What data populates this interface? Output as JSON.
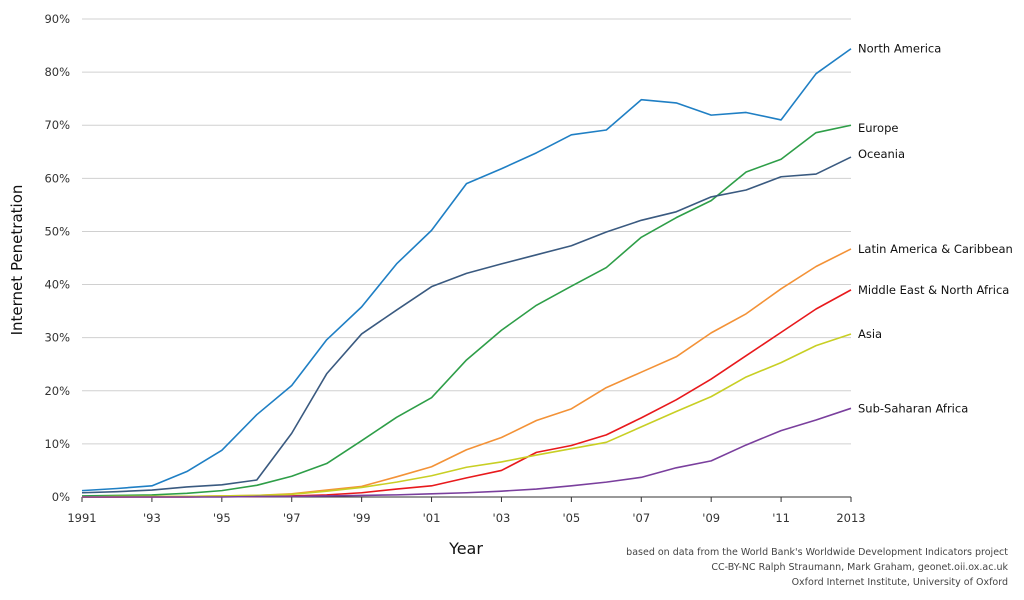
{
  "chart_data": {
    "type": "line",
    "xlabel": "Year",
    "ylabel": "Internet Penetration",
    "x": [
      1991,
      1992,
      1993,
      1994,
      1995,
      1996,
      1997,
      1998,
      1999,
      2000,
      2001,
      2002,
      2003,
      2004,
      2005,
      2006,
      2007,
      2008,
      2009,
      2010,
      2011,
      2012,
      2013
    ],
    "x_tick_labels": [
      "1991",
      "'93",
      "'95",
      "'97",
      "'99",
      "'01",
      "'03",
      "'05",
      "'07",
      "'09",
      "'11",
      "2013"
    ],
    "x_tick_values": [
      1991,
      1993,
      1995,
      1997,
      1999,
      2001,
      2003,
      2005,
      2007,
      2009,
      2011,
      2013
    ],
    "y_tick_labels": [
      "0%",
      "10%",
      "20%",
      "30%",
      "40%",
      "50%",
      "60%",
      "70%",
      "80%",
      "90%"
    ],
    "y_tick_values": [
      0,
      10,
      20,
      30,
      40,
      50,
      60,
      70,
      80,
      90
    ],
    "ylim": [
      0,
      90
    ],
    "xlim": [
      1991,
      2013
    ],
    "grid": "horizontal",
    "legend": "labels at line ends (right)",
    "series": [
      {
        "name": "North America",
        "color": "#1f7fc4",
        "values": [
          1.2,
          1.6,
          2.1,
          4.8,
          8.8,
          15.5,
          21.0,
          29.6,
          35.8,
          43.9,
          50.2,
          59.0,
          61.8,
          64.8,
          68.2,
          69.1,
          74.8,
          74.2,
          71.9,
          72.4,
          71.0,
          79.7,
          84.4
        ]
      },
      {
        "name": "Europe",
        "color": "#2e9e48",
        "values": [
          0.2,
          0.3,
          0.4,
          0.7,
          1.2,
          2.2,
          3.9,
          6.3,
          10.6,
          15.0,
          18.7,
          25.8,
          31.4,
          36.1,
          39.7,
          43.2,
          48.9,
          52.6,
          55.8,
          61.2,
          63.6,
          68.6,
          70.0
        ]
      },
      {
        "name": "Oceania",
        "color": "#3a5a80",
        "values": [
          0.8,
          1.0,
          1.3,
          1.9,
          2.3,
          3.2,
          12.0,
          23.2,
          30.7,
          35.2,
          39.6,
          42.1,
          43.9,
          45.6,
          47.3,
          49.9,
          52.1,
          53.7,
          56.5,
          57.8,
          60.3,
          60.8,
          64.0
        ]
      },
      {
        "name": "Latin America & Caribbean",
        "color": "#f39237",
        "values": [
          0.0,
          0.0,
          0.1,
          0.1,
          0.2,
          0.3,
          0.6,
          1.3,
          2.0,
          3.8,
          5.7,
          8.9,
          11.2,
          14.4,
          16.6,
          20.6,
          23.5,
          26.4,
          30.9,
          34.5,
          39.2,
          43.4,
          46.7
        ]
      },
      {
        "name": "Middle East & North Africa",
        "color": "#e8191c",
        "values": [
          0.0,
          0.0,
          0.0,
          0.0,
          0.1,
          0.1,
          0.2,
          0.4,
          0.8,
          1.5,
          2.1,
          3.6,
          5.0,
          8.4,
          9.7,
          11.7,
          14.9,
          18.3,
          22.2,
          26.6,
          31.0,
          35.4,
          39.0
        ]
      },
      {
        "name": "Asia",
        "color": "#c8cf24",
        "values": [
          0.0,
          0.1,
          0.1,
          0.1,
          0.2,
          0.3,
          0.5,
          1.1,
          1.8,
          2.8,
          4.0,
          5.6,
          6.6,
          7.9,
          9.1,
          10.3,
          13.2,
          16.1,
          18.9,
          22.6,
          25.3,
          28.5,
          30.7
        ]
      },
      {
        "name": "Sub-Saharan Africa",
        "color": "#7a3f9d",
        "values": [
          0.0,
          0.0,
          0.0,
          0.0,
          0.0,
          0.1,
          0.1,
          0.2,
          0.3,
          0.4,
          0.6,
          0.8,
          1.1,
          1.5,
          2.1,
          2.8,
          3.7,
          5.5,
          6.8,
          9.8,
          12.5,
          14.5,
          16.7
        ]
      }
    ]
  },
  "credits": {
    "line1": "based on data from the World Bank's Worldwide Development Indicators project",
    "line2": "CC-BY-NC Ralph Straumann, Mark Graham, geonet.oii.ox.ac.uk",
    "line3": "Oxford Internet Institute, University of Oxford"
  }
}
